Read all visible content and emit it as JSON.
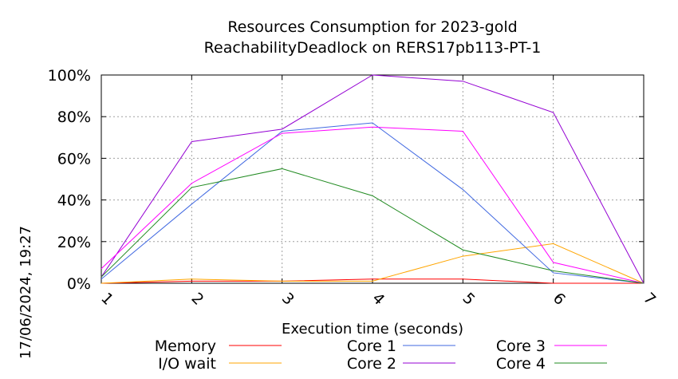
{
  "chart_data": {
    "type": "line",
    "title": "Resources Consumption for 2023-gold",
    "subtitle": "ReachabilityDeadlock on RERS17pb113-PT-1",
    "xlabel": "Execution time (seconds)",
    "ylabel": "",
    "timestamp": "17/06/2024, 19:27",
    "x": [
      1,
      2,
      3,
      4,
      5,
      6,
      7
    ],
    "xlim": [
      1,
      7
    ],
    "ylim": [
      0,
      100
    ],
    "x_tick_labels": [
      "1",
      "2",
      "3",
      "4",
      "5",
      "6",
      "7"
    ],
    "y_tick_labels": [
      "0%",
      "20%",
      "40%",
      "60%",
      "80%",
      "100%"
    ],
    "grid": true,
    "legend_position": "bottom",
    "series": [
      {
        "name": "Memory",
        "color": "#ff0000",
        "values": [
          0,
          1,
          1,
          2,
          2,
          0,
          0
        ]
      },
      {
        "name": "I/O wait",
        "color": "#ffa500",
        "values": [
          0,
          2,
          1,
          1,
          13,
          19,
          0
        ]
      },
      {
        "name": "Core 1",
        "color": "#4169e1",
        "values": [
          2,
          38,
          73,
          77,
          45,
          5,
          0
        ]
      },
      {
        "name": "Core 2",
        "color": "#9400d3",
        "values": [
          3,
          68,
          74,
          100,
          97,
          82,
          0
        ]
      },
      {
        "name": "Core 3",
        "color": "#ff00ff",
        "values": [
          7,
          48,
          72,
          75,
          73,
          10,
          0
        ]
      },
      {
        "name": "Core 4",
        "color": "#228b22",
        "values": [
          3,
          46,
          55,
          42,
          16,
          6,
          0
        ]
      }
    ]
  }
}
